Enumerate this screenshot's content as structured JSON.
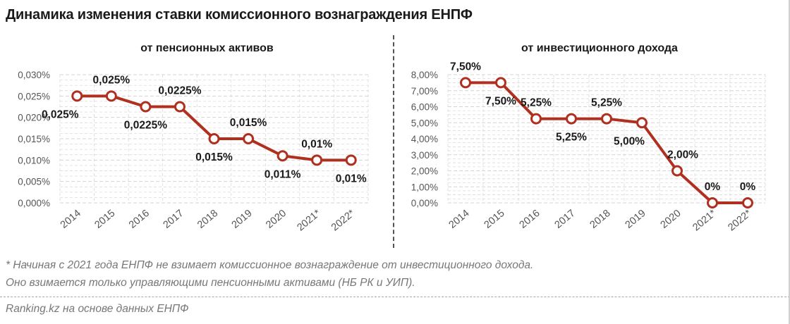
{
  "page": {
    "title": "Динамика изменения ставки комиссионного вознаграждения ЕНПФ",
    "footnote_1": "* Начиная с 2021 года ЕНПФ не взимает комиссионное вознаграждение от инвестиционного дохода.",
    "footnote_2": "Оно взимается только управляющими пенсионными активами (НБ РК и УИП).",
    "source": "Ranking.kz на основе данных ЕНПФ"
  },
  "colors": {
    "line": "#b03020",
    "marker_fill": "#ffffff",
    "grid": "#d4d4d4",
    "axis_text": "#555555",
    "label_text": "#1a1a1a"
  },
  "chart_data": [
    {
      "type": "line",
      "title": "от пенсионных активов",
      "categories": [
        "2014",
        "2015",
        "2016",
        "2017",
        "2018",
        "2019",
        "2020",
        "2021*",
        "2022*"
      ],
      "values": [
        0.025,
        0.025,
        0.0225,
        0.0225,
        0.015,
        0.015,
        0.011,
        0.01,
        0.01
      ],
      "data_labels": [
        "0,025%",
        "0,025%",
        "0,0225%",
        "0,0225%",
        "0,015%",
        "0,015%",
        "0,011%",
        "0,01%",
        "0,01%"
      ],
      "label_positions": [
        "below",
        "above",
        "below",
        "above",
        "below",
        "above",
        "below",
        "above",
        "below"
      ],
      "ylim": [
        0,
        0.03
      ],
      "yticks": [
        0,
        0.005,
        0.01,
        0.015,
        0.02,
        0.025,
        0.03
      ],
      "ytick_labels": [
        "0,000%",
        "0,005%",
        "0,010%",
        "0,015%",
        "0,020%",
        "0,025%",
        "0,030%"
      ],
      "xlabel": "",
      "ylabel": "",
      "grid": true
    },
    {
      "type": "line",
      "title": "от инвестиционного дохода",
      "categories": [
        "2014",
        "2015",
        "2016",
        "2017",
        "2018",
        "2019",
        "2020",
        "2021*",
        "2022*"
      ],
      "values": [
        7.5,
        7.5,
        5.25,
        5.25,
        5.25,
        5.0,
        2.0,
        0,
        0
      ],
      "data_labels": [
        "7,50%",
        "7,50%",
        "5,25%",
        "5,25%",
        "5,25%",
        "5,00%",
        "2,00%",
        "0%",
        "0%"
      ],
      "label_positions": [
        "above",
        "below",
        "above",
        "below",
        "above",
        "below",
        "above",
        "above",
        "above"
      ],
      "ylim": [
        0,
        8
      ],
      "yticks": [
        0,
        1,
        2,
        3,
        4,
        5,
        6,
        7,
        8
      ],
      "ytick_labels": [
        "0,00%",
        "1,00%",
        "2,00%",
        "3,00%",
        "4,00%",
        "5,00%",
        "6,00%",
        "7,00%",
        "8,00%"
      ],
      "xlabel": "",
      "ylabel": "",
      "grid": true
    }
  ]
}
